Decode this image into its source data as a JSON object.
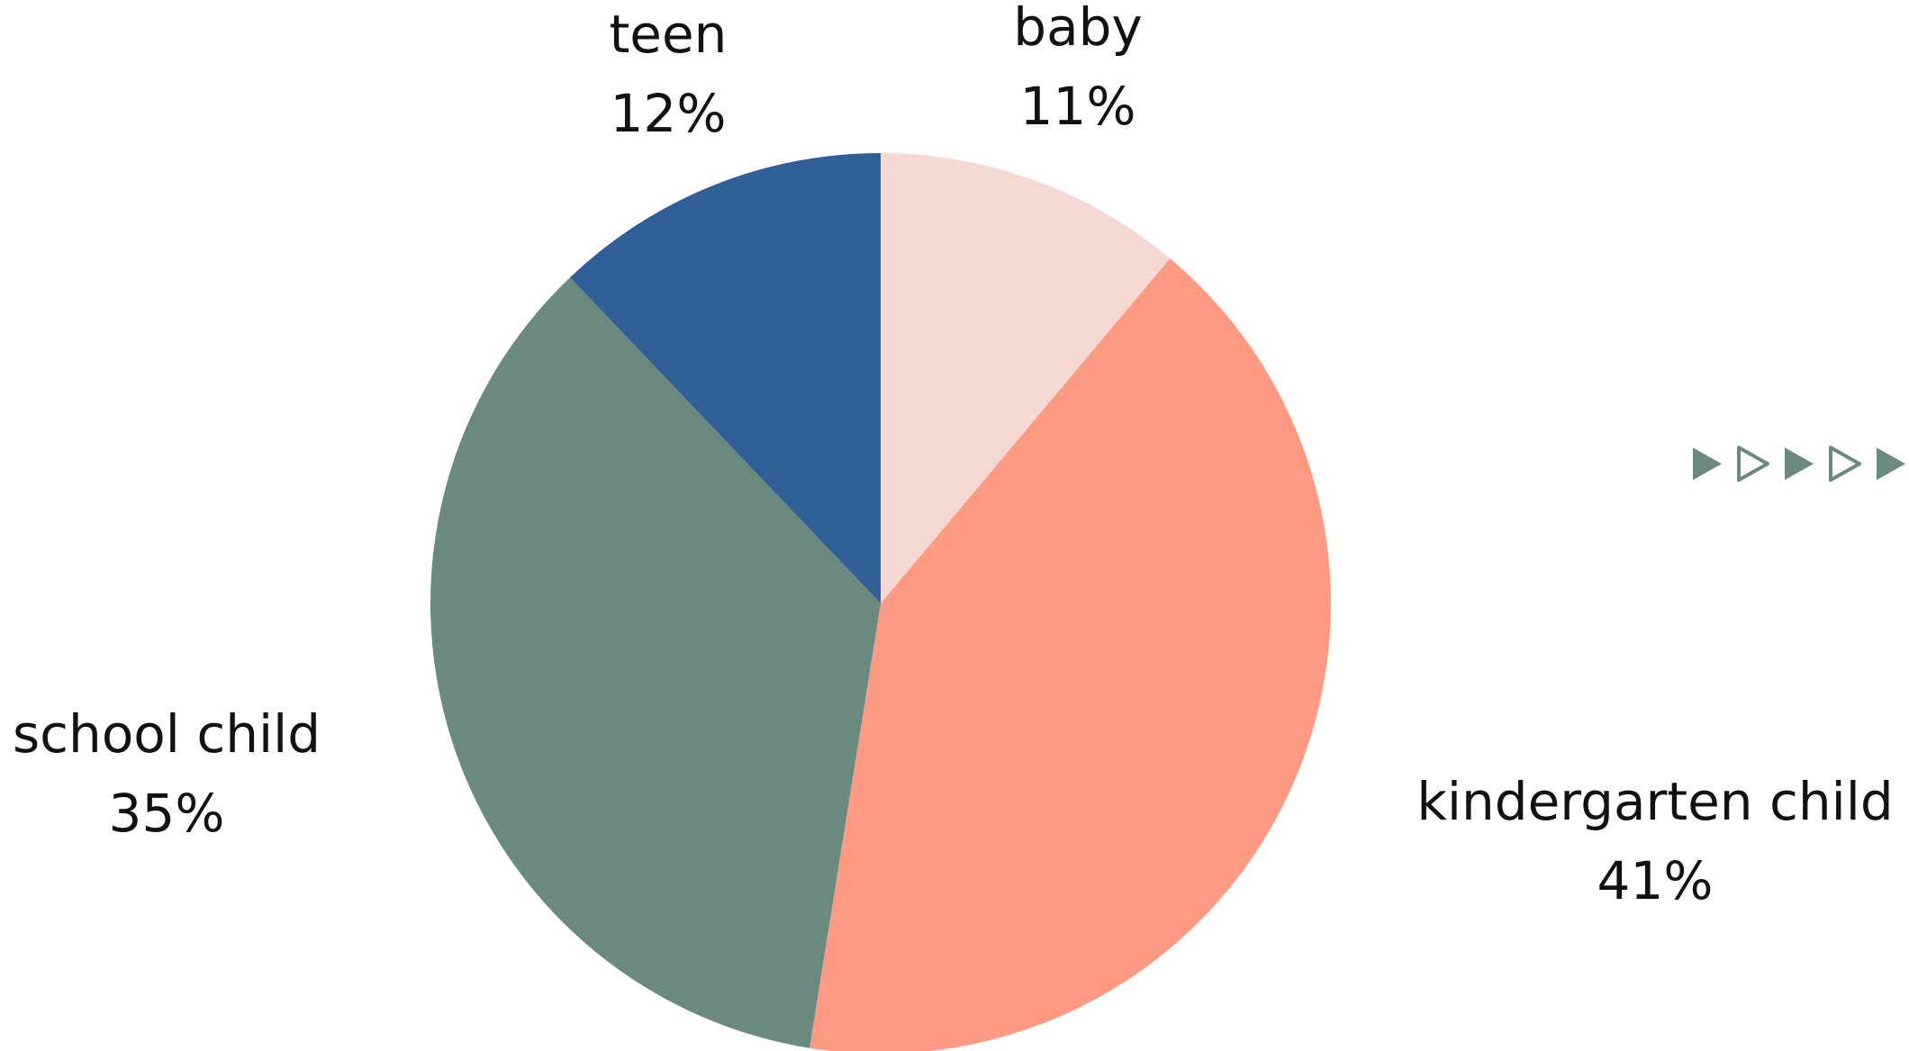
{
  "chart_data": {
    "type": "pie",
    "title": "",
    "start_angle_deg": 0,
    "direction": "clockwise",
    "slices": [
      {
        "name": "baby",
        "value": 11,
        "label": "11%",
        "color": "#F5D8D1"
      },
      {
        "name": "kindergarten child",
        "value": 41,
        "label": "41%",
        "color": "#FF9A82"
      },
      {
        "name": "school child",
        "value": 35,
        "label": "35%",
        "color": "#6A8A80"
      },
      {
        "name": "teen",
        "value": 12,
        "label": "12%",
        "color": "#2F5F96"
      }
    ],
    "legend": "none"
  },
  "decoration": {
    "arrow_color": "#6A8A80",
    "arrows": [
      {
        "icon": "play-filled-icon",
        "filled": true
      },
      {
        "icon": "play-outline-icon",
        "filled": false
      },
      {
        "icon": "play-filled-icon",
        "filled": true
      },
      {
        "icon": "play-outline-icon",
        "filled": false
      },
      {
        "icon": "play-filled-icon",
        "filled": true
      }
    ]
  }
}
